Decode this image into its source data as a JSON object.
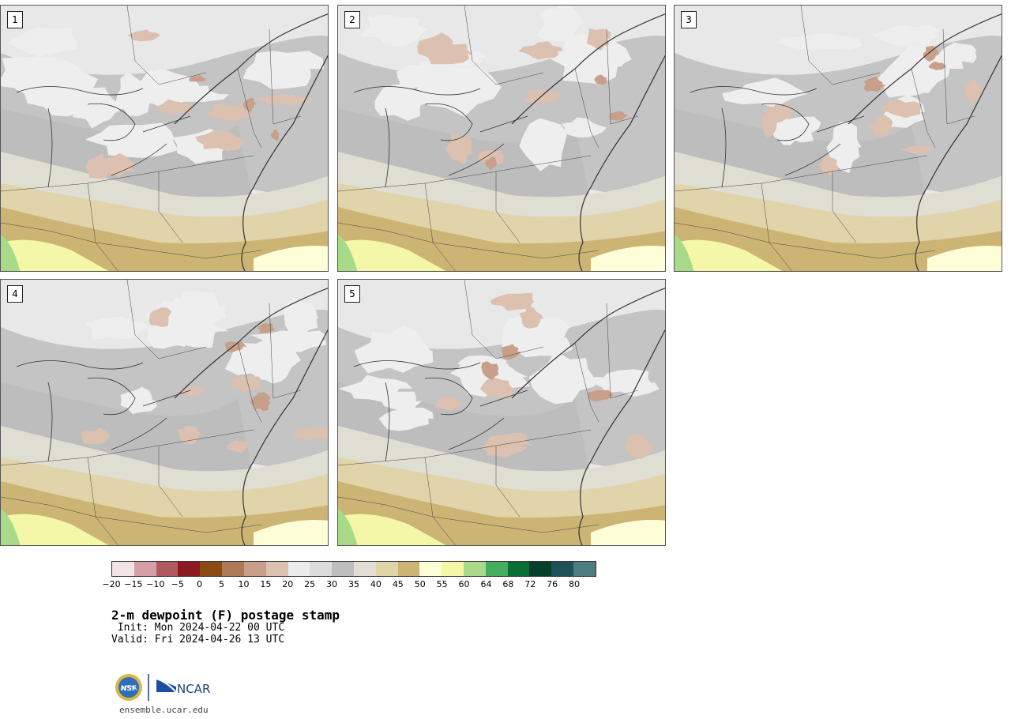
{
  "panels": [
    {
      "label": "1"
    },
    {
      "label": "2"
    },
    {
      "label": "3"
    },
    {
      "label": "4"
    },
    {
      "label": "5"
    }
  ],
  "colorbar": {
    "ticks": [
      "−20",
      "−15",
      "−10",
      "−5",
      "0",
      "5",
      "10",
      "15",
      "20",
      "25",
      "30",
      "35",
      "40",
      "45",
      "50",
      "55",
      "60",
      "64",
      "68",
      "72",
      "76",
      "80"
    ],
    "colors": [
      "#f0e4e4",
      "#d4a0a4",
      "#b05a60",
      "#8c1a22",
      "#8c4a14",
      "#ad7a58",
      "#c8a08a",
      "#dcc0b0",
      "#ececec",
      "#dcdcdc",
      "#bebebe",
      "#deded2",
      "#e2d4aa",
      "#ccb474",
      "#fdfdd8",
      "#f4f6a8",
      "#a8da8a",
      "#44ae5e",
      "#0a6e36",
      "#06402a",
      "#1e5258",
      "#4e7c80"
    ]
  },
  "title": "2-m dewpoint (F) postage stamp",
  "init": " Init: Mon 2024-04-22 00 UTC",
  "valid": "Valid: Fri 2024-04-26 13 UTC",
  "logo_text": "NCAR",
  "seal_text": "NSF",
  "site": "ensemble.ucar.edu"
}
